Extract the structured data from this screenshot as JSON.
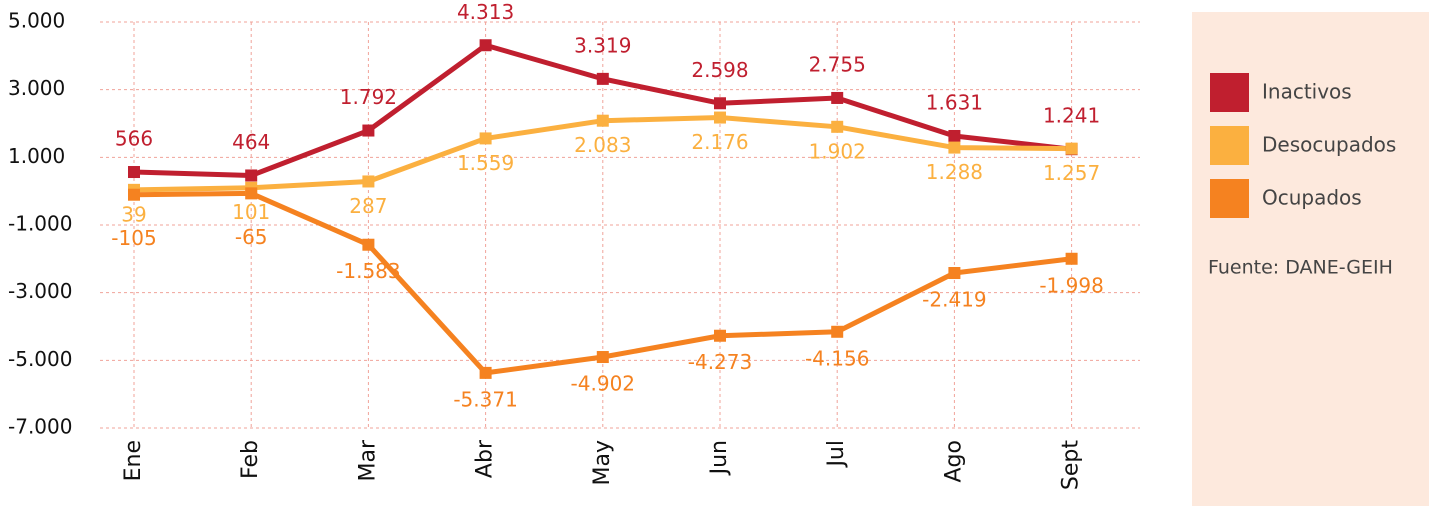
{
  "chart_data": {
    "type": "line",
    "categories": [
      "Ene",
      "Feb",
      "Mar",
      "Abr",
      "May",
      "Jun",
      "Jul",
      "Ago",
      "Sept"
    ],
    "series": [
      {
        "name": "Inactivos",
        "color": "#c01f2f",
        "values": [
          566,
          464,
          1792,
          4313,
          3319,
          2598,
          2755,
          1631,
          1241
        ],
        "value_labels": [
          "566",
          "464",
          "1.792",
          "4.313",
          "3.319",
          "2.598",
          "2.755",
          "1.631",
          "1.241"
        ]
      },
      {
        "name": "Desocupados",
        "color": "#fbb040",
        "values": [
          39,
          101,
          287,
          1559,
          2083,
          2176,
          1902,
          1288,
          1257
        ],
        "value_labels": [
          "39",
          "101",
          "287",
          "1.559",
          "2.083",
          "2.176",
          "1.902",
          "1.288",
          "1.257"
        ]
      },
      {
        "name": "Ocupados",
        "color": "#f58220",
        "values": [
          -105,
          -65,
          -1583,
          -5371,
          -4902,
          -4273,
          -4156,
          -2419,
          -1998
        ],
        "value_labels": [
          "-105",
          "-65",
          "-1.583",
          "-5.371",
          "-4.902",
          "-4.273",
          "-4.156",
          "-2.419",
          "-1.998"
        ]
      }
    ],
    "ylim": [
      -7000,
      5000
    ],
    "yticks": [
      {
        "value": 5000,
        "label": "5.000"
      },
      {
        "value": 3000,
        "label": "3.000"
      },
      {
        "value": 1000,
        "label": "1.000"
      },
      {
        "value": -1000,
        "label": "-1.000"
      },
      {
        "value": -3000,
        "label": "-3.000"
      },
      {
        "value": -5000,
        "label": "-5.000"
      },
      {
        "value": -7000,
        "label": "-7.000"
      }
    ],
    "grid": true,
    "legend": "right",
    "source": "Fuente: DANE-GEIH"
  }
}
